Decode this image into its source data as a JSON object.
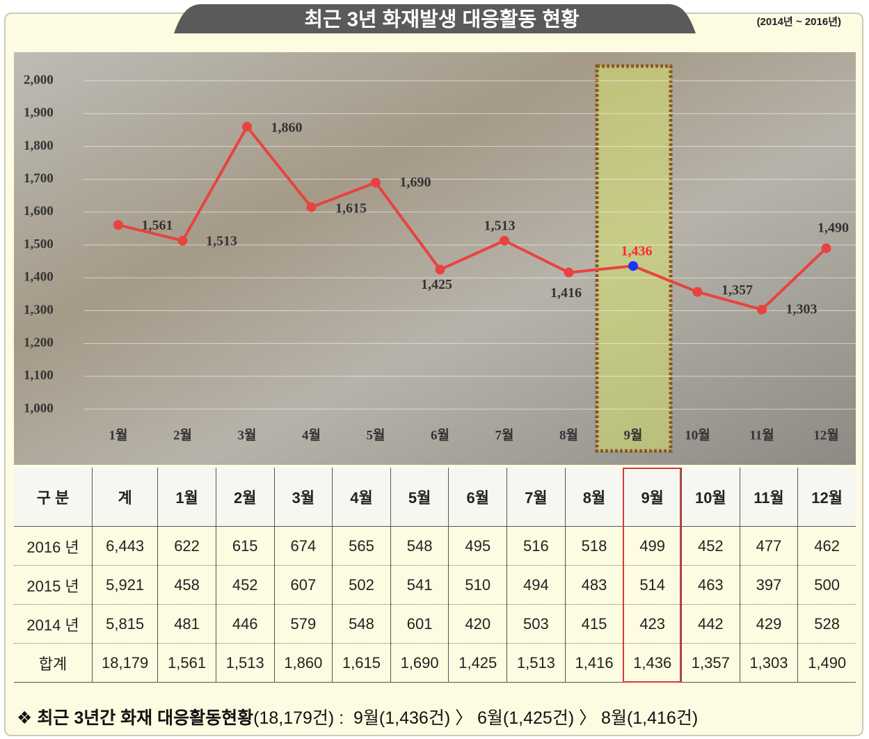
{
  "header": {
    "title": "최근 3년 화재발생 대응활동 현황",
    "period": "(2014년 ~ 2016년)"
  },
  "chart_data": {
    "type": "line",
    "categories": [
      "1월",
      "2월",
      "3월",
      "4월",
      "5월",
      "6월",
      "7월",
      "8월",
      "9월",
      "10월",
      "11월",
      "12월"
    ],
    "values": [
      1561,
      1513,
      1860,
      1615,
      1690,
      1425,
      1513,
      1416,
      1436,
      1357,
      1303,
      1490
    ],
    "value_labels": [
      "1,561",
      "1,513",
      "1,860",
      "1,615",
      "1,690",
      "1,425",
      "1,513",
      "1,416",
      "1,436",
      "1,357",
      "1,303",
      "1,490"
    ],
    "color": "#e8433f",
    "ylim": [
      1000,
      2000
    ],
    "yticks": [
      {
        "value": 1000,
        "label": "1,000"
      },
      {
        "value": 1100,
        "label": "1,100"
      },
      {
        "value": 1200,
        "label": "1,200"
      },
      {
        "value": 1300,
        "label": "1,300"
      },
      {
        "value": 1400,
        "label": "1,400"
      },
      {
        "value": 1500,
        "label": "1,500"
      },
      {
        "value": 1600,
        "label": "1,600"
      },
      {
        "value": 1700,
        "label": "1,700"
      },
      {
        "value": 1800,
        "label": "1,800"
      },
      {
        "value": 1900,
        "label": "1,900"
      },
      {
        "value": 2000,
        "label": "2,000"
      }
    ],
    "grid": true,
    "highlight": "9월",
    "highlight_label_color": "#ff2b2b",
    "highlight_point_color": "#1a33ff"
  },
  "table": {
    "header": [
      "구 분",
      "계",
      "1월",
      "2월",
      "3월",
      "4월",
      "5월",
      "6월",
      "7월",
      "8월",
      "9월",
      "10월",
      "11월",
      "12월"
    ],
    "rows": [
      [
        "2016 년",
        "6,443",
        "622",
        "615",
        "674",
        "565",
        "548",
        "495",
        "516",
        "518",
        "499",
        "452",
        "477",
        "462"
      ],
      [
        "2015 년",
        "5,921",
        "458",
        "452",
        "607",
        "502",
        "541",
        "510",
        "494",
        "483",
        "514",
        "463",
        "397",
        "500"
      ],
      [
        "2014 년",
        "5,815",
        "481",
        "446",
        "579",
        "548",
        "601",
        "420",
        "503",
        "415",
        "423",
        "442",
        "429",
        "528"
      ],
      [
        "합계",
        "18,179",
        "1,561",
        "1,513",
        "1,860",
        "1,615",
        "1,690",
        "1,425",
        "1,513",
        "1,416",
        "1,436",
        "1,357",
        "1,303",
        "1,490"
      ]
    ]
  },
  "footer": {
    "bullet": "❖",
    "label": "최근 3년간 화재 대응활동현황",
    "detail": "(18,179건) :  9월(1,436건) 〉 6월(1,425건) 〉 8월(1,416건)"
  }
}
